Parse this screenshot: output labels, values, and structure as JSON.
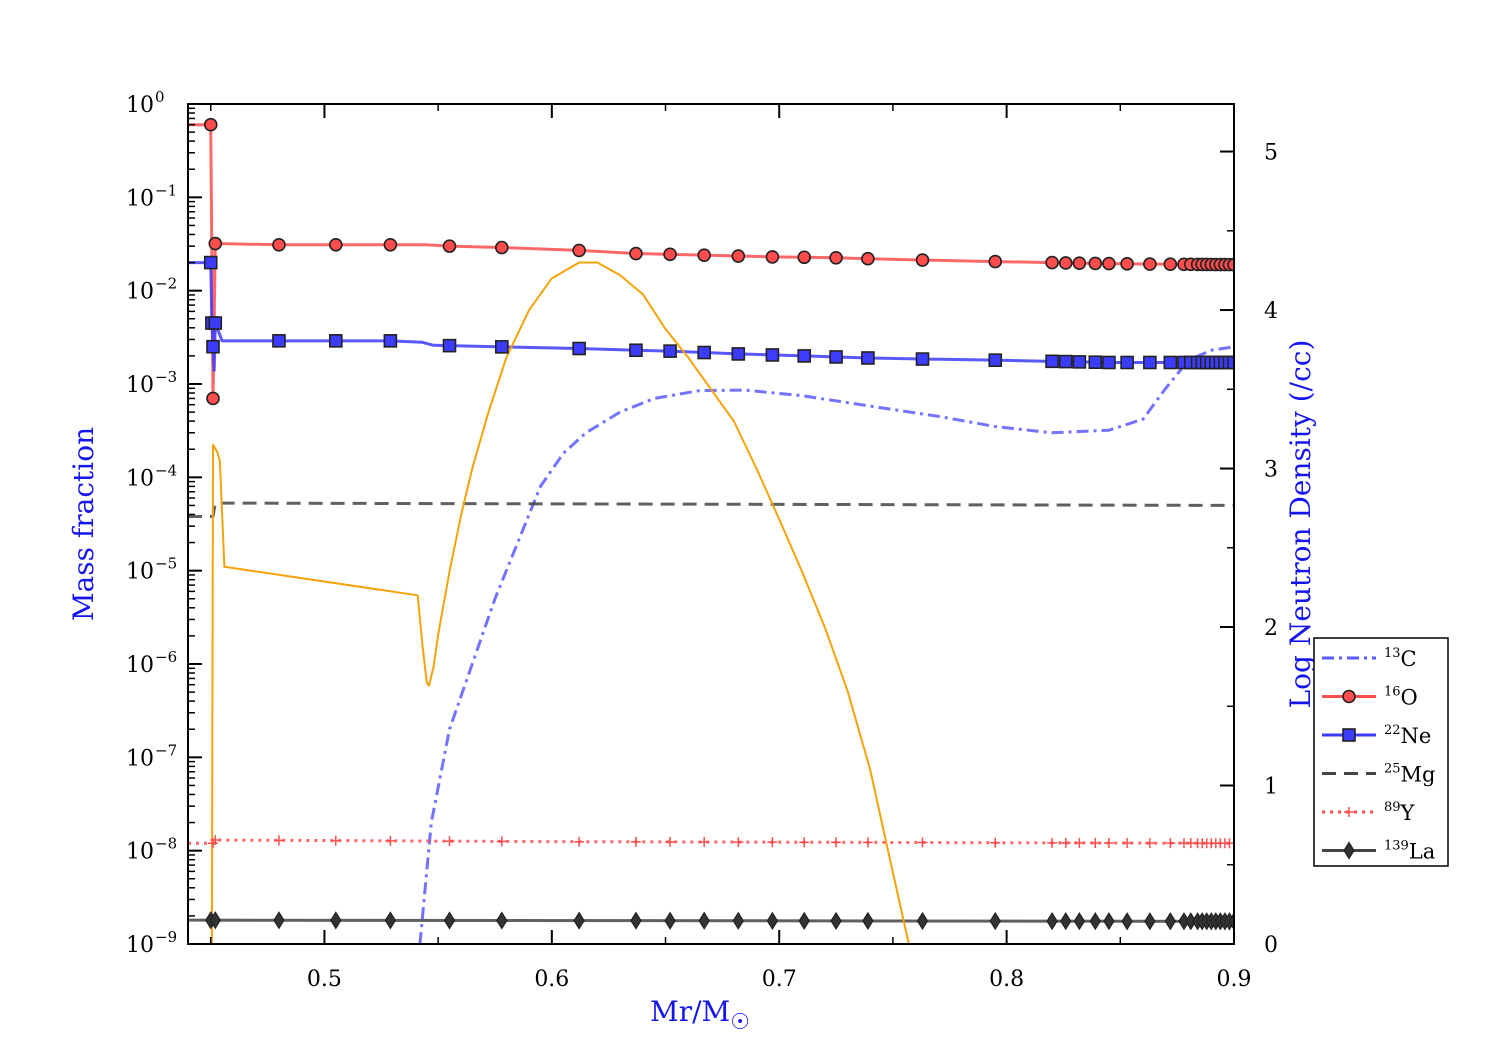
{
  "chart_data": {
    "type": "line",
    "xlabel_main": "Mr/M",
    "xlabel_symbol": "☉",
    "ylabel_left": "Mass fraction",
    "ylabel_right": "Log Neutron Density (/cc)",
    "xlim": [
      0.44,
      0.9
    ],
    "ylim_left_log10": [
      -9,
      0
    ],
    "ylim_right": [
      0,
      5.3
    ],
    "y_left_scale": "log",
    "grid": false,
    "legend_position": "right",
    "x_ticks": [
      "0.5",
      "0.6",
      "0.7",
      "0.8",
      "0.9"
    ],
    "y_left_tick_exponents": [
      "0",
      "−1",
      "−2",
      "−3",
      "−4",
      "−5",
      "−6",
      "−7",
      "−8",
      "−9"
    ],
    "y_right_ticks": [
      "0",
      "1",
      "2",
      "3",
      "4",
      "5"
    ],
    "series": [
      {
        "name_mass": "13",
        "name_elem": "C",
        "axis": "left",
        "style": "dashdot",
        "marker": "none",
        "color": "#5a5aff",
        "points": [
          [
            0.542,
            1e-09
          ],
          [
            0.547,
            2e-08
          ],
          [
            0.555,
            2e-07
          ],
          [
            0.565,
            1e-06
          ],
          [
            0.575,
            5e-06
          ],
          [
            0.585,
            2e-05
          ],
          [
            0.595,
            8e-05
          ],
          [
            0.605,
            0.00018
          ],
          [
            0.615,
            0.0003
          ],
          [
            0.63,
            0.0005
          ],
          [
            0.645,
            0.0007
          ],
          [
            0.665,
            0.00085
          ],
          [
            0.685,
            0.00086
          ],
          [
            0.71,
            0.00075
          ],
          [
            0.74,
            0.00058
          ],
          [
            0.77,
            0.00045
          ],
          [
            0.795,
            0.00035
          ],
          [
            0.82,
            0.0003
          ],
          [
            0.845,
            0.00032
          ],
          [
            0.86,
            0.00042
          ],
          [
            0.87,
            0.0009
          ],
          [
            0.88,
            0.0018
          ],
          [
            0.89,
            0.0023
          ],
          [
            0.9,
            0.0025
          ]
        ]
      },
      {
        "name_mass": "16",
        "name_elem": "O",
        "axis": "left",
        "style": "solid",
        "marker": "circle",
        "color": "#ff4d4d",
        "points": [
          [
            0.44,
            0.6
          ],
          [
            0.45,
            0.6
          ],
          [
            0.451,
            0.0007
          ],
          [
            0.452,
            0.032
          ],
          [
            0.48,
            0.031
          ],
          [
            0.505,
            0.031
          ],
          [
            0.53,
            0.031
          ],
          [
            0.545,
            0.031
          ],
          [
            0.555,
            0.03
          ],
          [
            0.578,
            0.029
          ],
          [
            0.612,
            0.027
          ],
          [
            0.637,
            0.025
          ],
          [
            0.652,
            0.0245
          ],
          [
            0.667,
            0.024
          ],
          [
            0.682,
            0.0235
          ],
          [
            0.697,
            0.023
          ],
          [
            0.711,
            0.0228
          ],
          [
            0.725,
            0.0225
          ],
          [
            0.739,
            0.022
          ],
          [
            0.763,
            0.0213
          ],
          [
            0.795,
            0.0205
          ],
          [
            0.82,
            0.02
          ],
          [
            0.826,
            0.0198
          ],
          [
            0.832,
            0.0197
          ],
          [
            0.839,
            0.0196
          ],
          [
            0.845,
            0.0195
          ],
          [
            0.853,
            0.0194
          ],
          [
            0.863,
            0.0193
          ],
          [
            0.872,
            0.0192
          ],
          [
            0.9,
            0.019
          ]
        ],
        "marker_x": [
          0.45,
          0.451,
          0.452,
          0.48,
          0.505,
          0.529,
          0.555,
          0.578,
          0.612,
          0.637,
          0.652,
          0.667,
          0.682,
          0.697,
          0.711,
          0.725,
          0.739,
          0.763,
          0.795,
          0.82,
          0.826,
          0.832,
          0.839,
          0.845,
          0.853,
          0.863,
          0.872,
          0.878,
          0.881,
          0.884,
          0.886,
          0.888,
          0.89,
          0.892,
          0.894,
          0.896,
          0.898,
          0.9
        ]
      },
      {
        "name_mass": "22",
        "name_elem": "Ne",
        "axis": "left",
        "style": "solid",
        "marker": "square",
        "color": "#3c3cff",
        "points": [
          [
            0.44,
            0.02
          ],
          [
            0.45,
            0.02
          ],
          [
            0.4505,
            0.0045
          ],
          [
            0.4515,
            0.0014
          ],
          [
            0.452,
            0.0045
          ],
          [
            0.455,
            0.0029
          ],
          [
            0.48,
            0.0029
          ],
          [
            0.505,
            0.0029
          ],
          [
            0.529,
            0.0029
          ],
          [
            0.543,
            0.0028
          ],
          [
            0.548,
            0.0026
          ],
          [
            0.578,
            0.0025
          ],
          [
            0.612,
            0.0024
          ],
          [
            0.637,
            0.0023
          ],
          [
            0.652,
            0.00225
          ],
          [
            0.682,
            0.0021
          ],
          [
            0.711,
            0.002
          ],
          [
            0.739,
            0.0019
          ],
          [
            0.763,
            0.00185
          ],
          [
            0.795,
            0.0018
          ],
          [
            0.82,
            0.00175
          ],
          [
            0.845,
            0.0017
          ],
          [
            0.9,
            0.0017
          ]
        ],
        "marker_x": [
          0.45,
          0.4505,
          0.451,
          0.452,
          0.48,
          0.505,
          0.529,
          0.555,
          0.578,
          0.612,
          0.637,
          0.652,
          0.667,
          0.682,
          0.697,
          0.711,
          0.725,
          0.739,
          0.763,
          0.795,
          0.82,
          0.826,
          0.832,
          0.839,
          0.845,
          0.853,
          0.863,
          0.872,
          0.878,
          0.881,
          0.884,
          0.886,
          0.888,
          0.89,
          0.892,
          0.894,
          0.896,
          0.898,
          0.9
        ]
      },
      {
        "name_mass": "25",
        "name_elem": "Mg",
        "axis": "left",
        "style": "dashed",
        "marker": "none",
        "color": "#444444",
        "points": [
          [
            0.44,
            3.8e-05
          ],
          [
            0.451,
            3.8e-05
          ],
          [
            0.452,
            5.3e-05
          ],
          [
            0.9,
            5e-05
          ]
        ]
      },
      {
        "name_mass": "89",
        "name_elem": "Y",
        "axis": "left",
        "style": "dotted",
        "marker": "plus",
        "color": "#ff4d4d",
        "points": [
          [
            0.44,
            1.2e-08
          ],
          [
            0.451,
            1.2e-08
          ],
          [
            0.452,
            1.3e-08
          ],
          [
            0.6,
            1.25e-08
          ],
          [
            0.9,
            1.2e-08
          ]
        ],
        "marker_x": [
          0.451,
          0.452,
          0.48,
          0.505,
          0.529,
          0.555,
          0.578,
          0.612,
          0.637,
          0.652,
          0.667,
          0.682,
          0.697,
          0.711,
          0.725,
          0.739,
          0.763,
          0.795,
          0.82,
          0.826,
          0.832,
          0.839,
          0.845,
          0.853,
          0.863,
          0.872,
          0.878,
          0.881,
          0.884,
          0.886,
          0.888,
          0.89,
          0.892,
          0.894,
          0.896,
          0.898,
          0.9
        ]
      },
      {
        "name_mass": "139",
        "name_elem": "La",
        "axis": "left",
        "style": "solid",
        "marker": "diamond",
        "color": "#444444",
        "points": [
          [
            0.44,
            1.8e-09
          ],
          [
            0.9,
            1.75e-09
          ]
        ],
        "marker_x": [
          0.45,
          0.452,
          0.48,
          0.505,
          0.529,
          0.555,
          0.578,
          0.612,
          0.637,
          0.652,
          0.667,
          0.682,
          0.697,
          0.711,
          0.725,
          0.739,
          0.763,
          0.795,
          0.82,
          0.826,
          0.832,
          0.839,
          0.845,
          0.853,
          0.863,
          0.872,
          0.878,
          0.881,
          0.884,
          0.886,
          0.888,
          0.89,
          0.892,
          0.894,
          0.896,
          0.898,
          0.9
        ]
      },
      {
        "name_mass": "",
        "name_elem": "",
        "axis": "right",
        "style": "solid",
        "marker": "none",
        "color": "#f5a30a",
        "in_legend": false,
        "points": [
          [
            0.4505,
            0
          ],
          [
            0.451,
            3.15
          ],
          [
            0.453,
            3.1
          ],
          [
            0.454,
            3.05
          ],
          [
            0.456,
            2.38
          ],
          [
            0.541,
            2.2
          ],
          [
            0.542,
            2.05
          ],
          [
            0.543,
            1.9
          ],
          [
            0.545,
            1.65
          ],
          [
            0.546,
            1.63
          ],
          [
            0.548,
            1.75
          ],
          [
            0.55,
            1.95
          ],
          [
            0.555,
            2.35
          ],
          [
            0.56,
            2.7
          ],
          [
            0.565,
            3.0
          ],
          [
            0.572,
            3.35
          ],
          [
            0.58,
            3.7
          ],
          [
            0.59,
            4.0
          ],
          [
            0.6,
            4.2
          ],
          [
            0.612,
            4.3
          ],
          [
            0.62,
            4.3
          ],
          [
            0.63,
            4.22
          ],
          [
            0.64,
            4.1
          ],
          [
            0.65,
            3.88
          ],
          [
            0.66,
            3.7
          ],
          [
            0.67,
            3.5
          ],
          [
            0.68,
            3.3
          ],
          [
            0.69,
            3.0
          ],
          [
            0.7,
            2.68
          ],
          [
            0.71,
            2.35
          ],
          [
            0.72,
            2.0
          ],
          [
            0.73,
            1.6
          ],
          [
            0.74,
            1.1
          ],
          [
            0.75,
            0.45
          ],
          [
            0.757,
            0
          ]
        ]
      }
    ]
  }
}
